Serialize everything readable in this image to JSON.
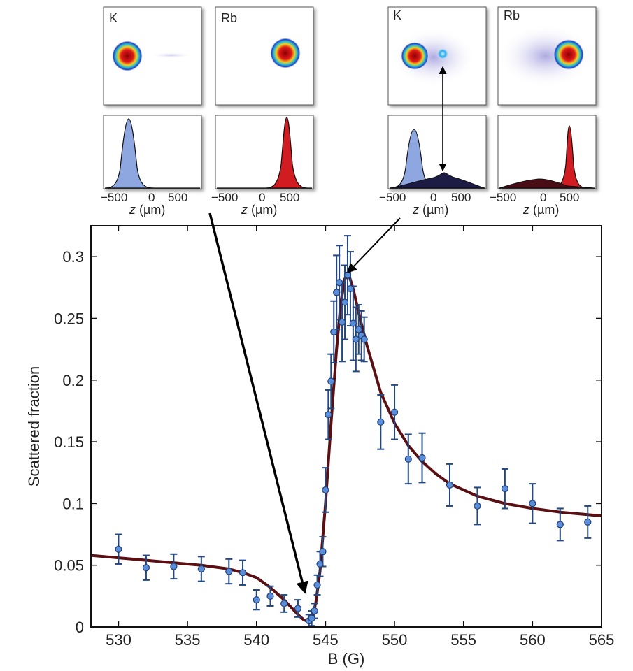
{
  "colors": {
    "fit_line": "#5a0f12",
    "point_fill": "#5b8ed8",
    "point_edge": "#1f3f7a",
    "errorbar": "#24477f",
    "k_fill": "#8ea7e0",
    "rb_fill": "#d11f24",
    "dark_fill": "#1a1f44",
    "dark_red_fill": "#4a0d12",
    "arrow": "#000000"
  },
  "insets": {
    "k_label": "K",
    "rb_label": "Rb",
    "tick_labels": [
      "−500",
      "0",
      "500"
    ],
    "xlabel_var": "z",
    "xlabel_unit": " (µm)"
  },
  "chart_data": {
    "type": "scatter",
    "xlabel": "B (G)",
    "ylabel": "Scattered fraction",
    "xlim": [
      528,
      565
    ],
    "ylim": [
      0,
      0.325
    ],
    "xticks": [
      530,
      535,
      540,
      545,
      550,
      555,
      560,
      565
    ],
    "yticks": [
      0,
      0.05,
      0.1,
      0.15,
      0.2,
      0.25,
      0.3
    ],
    "ytick_labels": [
      "0",
      "0.05",
      "0.1",
      "0.15",
      "0.2",
      "0.25",
      "0.3"
    ],
    "grid": false,
    "series": [
      {
        "kind": "points_with_errorbars",
        "x": [
          530,
          532,
          534,
          536,
          538,
          539,
          540,
          541,
          542,
          543,
          543.8,
          544.0,
          544.2,
          544.4,
          544.6,
          544.8,
          545.0,
          545.2,
          545.4,
          545.6,
          545.8,
          546.0,
          546.2,
          546.4,
          546.6,
          546.8,
          547.0,
          547.2,
          547.4,
          547.6,
          547.8,
          549,
          550,
          551,
          552,
          554,
          556,
          558,
          560,
          562,
          564
        ],
        "y": [
          0.063,
          0.048,
          0.049,
          0.047,
          0.045,
          0.044,
          0.022,
          0.025,
          0.019,
          0.015,
          0.005,
          0.007,
          0.013,
          0.034,
          0.051,
          0.061,
          0.111,
          0.172,
          0.199,
          0.239,
          0.271,
          0.279,
          0.247,
          0.263,
          0.285,
          0.274,
          0.246,
          0.233,
          0.241,
          0.236,
          0.233,
          0.166,
          0.174,
          0.136,
          0.137,
          0.115,
          0.098,
          0.112,
          0.1,
          0.083,
          0.085
        ],
        "yerr": [
          0.012,
          0.01,
          0.01,
          0.01,
          0.01,
          0.01,
          0.008,
          0.008,
          0.007,
          0.007,
          0.005,
          0.006,
          0.006,
          0.008,
          0.01,
          0.012,
          0.018,
          0.02,
          0.022,
          0.025,
          0.03,
          0.03,
          0.032,
          0.03,
          0.032,
          0.03,
          0.03,
          0.026,
          0.02,
          0.02,
          0.018,
          0.022,
          0.022,
          0.02,
          0.02,
          0.017,
          0.015,
          0.016,
          0.016,
          0.013,
          0.013
        ]
      },
      {
        "kind": "fit_line",
        "x": [
          528,
          530,
          532,
          534,
          536,
          538,
          539,
          540,
          541,
          542,
          542.5,
          543,
          543.4,
          543.8,
          544.0,
          544.3,
          544.6,
          545.0,
          545.4,
          545.8,
          546.1,
          546.4,
          546.7,
          547.0,
          547.5,
          548,
          549,
          550,
          551,
          552,
          553,
          554,
          556,
          558,
          560,
          562,
          565
        ],
        "y": [
          0.058,
          0.056,
          0.054,
          0.052,
          0.05,
          0.047,
          0.044,
          0.04,
          0.032,
          0.022,
          0.016,
          0.01,
          0.006,
          0.004,
          0.006,
          0.02,
          0.045,
          0.1,
          0.165,
          0.225,
          0.262,
          0.282,
          0.285,
          0.274,
          0.25,
          0.228,
          0.19,
          0.165,
          0.147,
          0.134,
          0.124,
          0.116,
          0.106,
          0.1,
          0.096,
          0.093,
          0.09
        ]
      }
    ]
  }
}
